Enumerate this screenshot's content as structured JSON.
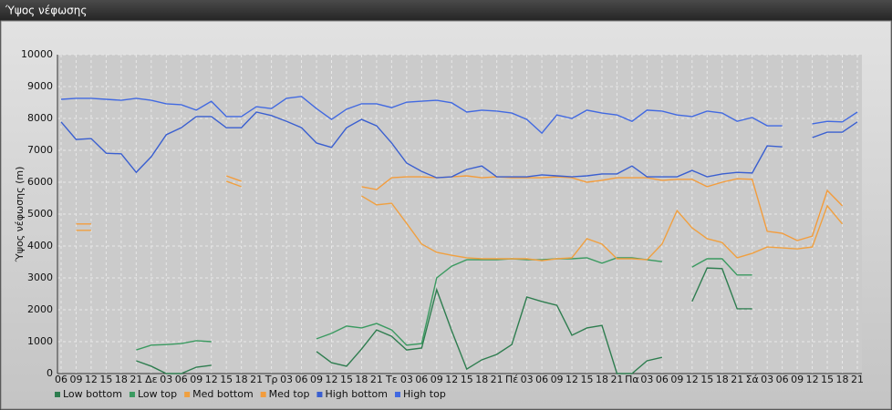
{
  "window_title": "Ύψος νέφωσης",
  "chart_data": {
    "type": "line",
    "y_label": "Ύψος νέφωσης (m)",
    "categories": [
      "06",
      "09",
      "12",
      "15",
      "18",
      "21",
      "Δε",
      "03",
      "06",
      "09",
      "12",
      "15",
      "18",
      "21",
      "Τρ",
      "03",
      "06",
      "09",
      "12",
      "15",
      "18",
      "21",
      "Τε",
      "03",
      "06",
      "09",
      "12",
      "15",
      "18",
      "21",
      "Πέ",
      "03",
      "06",
      "09",
      "12",
      "15",
      "18",
      "21",
      "Πα",
      "03",
      "06",
      "09",
      "12",
      "15",
      "18",
      "21",
      "Σά",
      "03",
      "06",
      "09",
      "12",
      "15",
      "18",
      "21"
    ],
    "ylim": [
      0,
      10000
    ],
    "yticks": [
      0,
      1000,
      2000,
      3000,
      4000,
      5000,
      6000,
      7000,
      8000,
      9000,
      10000
    ],
    "grid": true,
    "legend": "bottom",
    "series": [
      {
        "name": "Low bottom",
        "color": "#2e7d4f",
        "values": [
          null,
          null,
          null,
          null,
          null,
          400,
          230,
          0,
          0,
          200,
          260,
          null,
          null,
          null,
          null,
          null,
          null,
          690,
          340,
          230,
          770,
          1370,
          1170,
          740,
          800,
          2630,
          1340,
          140,
          430,
          600,
          910,
          2400,
          2260,
          2140,
          1200,
          1430,
          1510,
          0,
          0,
          400,
          510,
          null,
          2260,
          3310,
          3290,
          2030,
          2030,
          null,
          null,
          null,
          null,
          null,
          null,
          null
        ]
      },
      {
        "name": "Low top",
        "color": "#3a9a60",
        "values": [
          null,
          null,
          null,
          null,
          null,
          740,
          890,
          910,
          940,
          1030,
          1000,
          null,
          null,
          null,
          null,
          null,
          null,
          1090,
          1260,
          1490,
          1430,
          1570,
          1370,
          890,
          940,
          3000,
          3370,
          3570,
          3570,
          3570,
          3600,
          3570,
          3570,
          3600,
          3600,
          3630,
          3460,
          3630,
          3630,
          3570,
          3510,
          null,
          3340,
          3600,
          3600,
          3090,
          3090,
          null,
          null,
          null,
          null,
          null,
          null,
          null
        ]
      },
      {
        "name": "Med bottom",
        "color": "#f0a040",
        "values": [
          null,
          4490,
          4490,
          null,
          null,
          null,
          null,
          null,
          null,
          null,
          null,
          6030,
          5860,
          null,
          null,
          null,
          null,
          null,
          null,
          null,
          5570,
          5290,
          5340,
          4710,
          4060,
          3800,
          3710,
          3630,
          3600,
          3600,
          3600,
          3600,
          3540,
          3600,
          3630,
          4230,
          4060,
          3600,
          3600,
          3570,
          4060,
          5110,
          4570,
          4230,
          4110,
          3630,
          3770,
          3970,
          3940,
          3910,
          3970,
          5260,
          4690,
          null
        ]
      },
      {
        "name": "Med top",
        "color": "#f39c3c",
        "values": [
          null,
          4690,
          4690,
          null,
          null,
          null,
          null,
          null,
          null,
          null,
          null,
          6200,
          6030,
          null,
          null,
          null,
          null,
          null,
          null,
          null,
          5860,
          5770,
          6140,
          6170,
          6170,
          6140,
          6170,
          6200,
          6140,
          6170,
          6140,
          6140,
          6140,
          6170,
          6140,
          6000,
          6060,
          6140,
          6140,
          6140,
          6060,
          6090,
          6090,
          5860,
          6000,
          6110,
          6090,
          4460,
          4400,
          4170,
          4310,
          5740,
          5260,
          null
        ]
      },
      {
        "name": "High bottom",
        "color": "#3a5fd0",
        "values": [
          7890,
          7340,
          7370,
          6910,
          6890,
          6310,
          6800,
          7490,
          7710,
          8060,
          8060,
          7710,
          7710,
          8200,
          8090,
          7910,
          7710,
          7230,
          7090,
          7710,
          7970,
          7770,
          7230,
          6600,
          6340,
          6140,
          6170,
          6400,
          6510,
          6170,
          6170,
          6170,
          6230,
          6200,
          6170,
          6200,
          6260,
          6260,
          6510,
          6170,
          6170,
          6170,
          6370,
          6170,
          6260,
          6310,
          6290,
          7140,
          7110,
          null,
          7400,
          7570,
          7570,
          7890
        ]
      },
      {
        "name": "High top",
        "color": "#4169e1",
        "values": [
          8600,
          8630,
          8630,
          8600,
          8570,
          8630,
          8570,
          8460,
          8430,
          8260,
          8540,
          8060,
          8060,
          8370,
          8310,
          8630,
          8690,
          8310,
          7970,
          8290,
          8460,
          8460,
          8340,
          8510,
          8540,
          8570,
          8490,
          8200,
          8260,
          8230,
          8170,
          7970,
          7540,
          8110,
          8000,
          8260,
          8170,
          8110,
          7910,
          8260,
          8230,
          8110,
          8060,
          8230,
          8170,
          7910,
          8030,
          7770,
          7770,
          null,
          7830,
          7910,
          7890,
          8200
        ]
      }
    ]
  }
}
